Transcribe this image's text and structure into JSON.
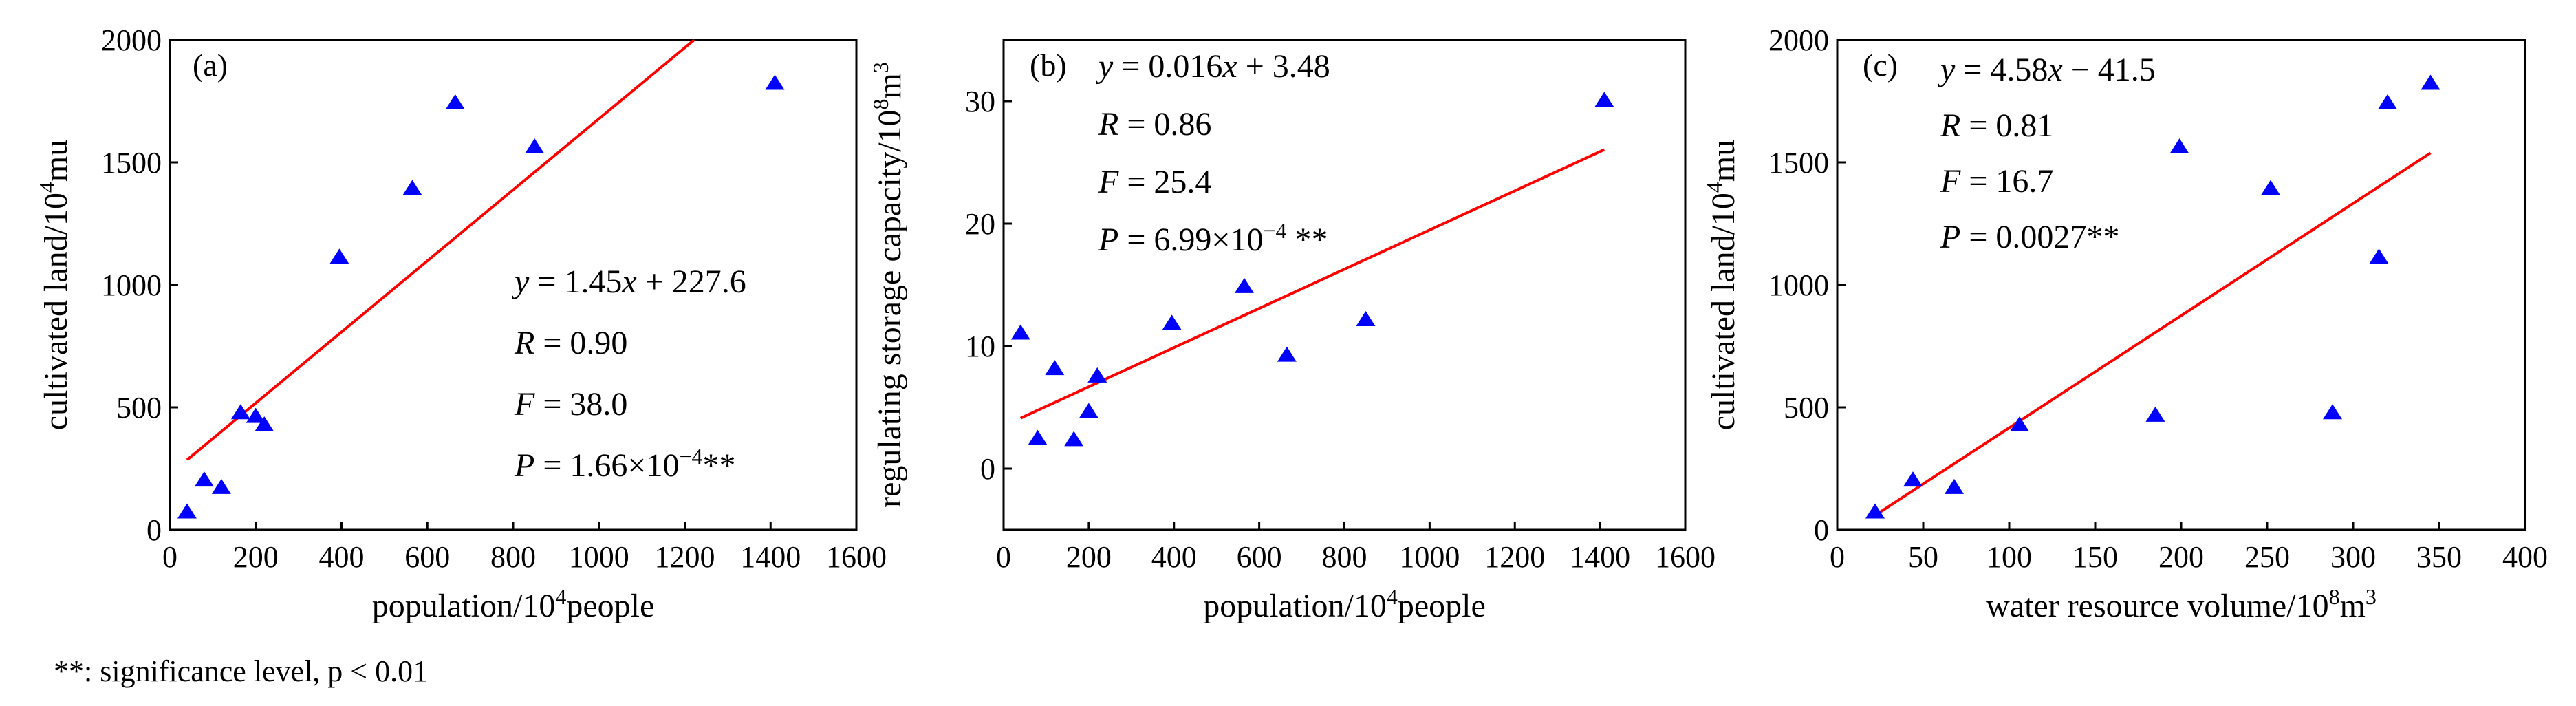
{
  "footnote": "**: significance level, p < 0.01",
  "chart_data": [
    {
      "type": "scatter",
      "panel": "(a)",
      "xlabel": {
        "pre": "population/10",
        "sup": "4",
        "post": "people"
      },
      "ylabel": {
        "pre": "cultivated land/10",
        "sup": "4",
        "post": "mu"
      },
      "xlim": [
        0,
        1600
      ],
      "ylim": [
        0,
        2000
      ],
      "xticks": [
        0,
        200,
        400,
        600,
        800,
        1000,
        1200,
        1400,
        1600
      ],
      "yticks": [
        0,
        500,
        1000,
        1500,
        2000
      ],
      "xtick_labels": [
        "0",
        "200",
        "400",
        "600",
        "800",
        "1000",
        "1200",
        "1400",
        "1600"
      ],
      "ytick_labels": [
        "0",
        "500",
        "1000",
        "1500",
        "2000"
      ],
      "points": [
        [
          40,
          70
        ],
        [
          80,
          200
        ],
        [
          120,
          170
        ],
        [
          165,
          475
        ],
        [
          200,
          460
        ],
        [
          220,
          425
        ],
        [
          395,
          1110
        ],
        [
          565,
          1390
        ],
        [
          665,
          1740
        ],
        [
          850,
          1560
        ],
        [
          1410,
          1820
        ]
      ],
      "fit": {
        "x": [
          40,
          1222
        ],
        "y": [
          285.6,
          2000
        ]
      },
      "marker_color": "#0000ff",
      "line_color": "#ff0000",
      "annotation": {
        "eq": "y = 1.45x + 227.6",
        "r": "R = 0.90",
        "f": "F = 38.0",
        "p_pre": "P = 1.66×10",
        "p_sup": "−4",
        "p_post": "**"
      }
    },
    {
      "type": "scatter",
      "panel": "(b)",
      "xlabel": {
        "pre": "population/10",
        "sup": "4",
        "post": "people"
      },
      "ylabel": {
        "pre": "regulating storage capacity/10",
        "sup": "8",
        "post": "m",
        "sup2": "3"
      },
      "xlim": [
        0,
        1600
      ],
      "ylim": [
        -5,
        35
      ],
      "xticks": [
        0,
        200,
        400,
        600,
        800,
        1000,
        1200,
        1400,
        1600
      ],
      "yticks": [
        0,
        10,
        20,
        30
      ],
      "xtick_labels": [
        "0",
        "200",
        "400",
        "600",
        "800",
        "1000",
        "1200",
        "1400",
        "1600"
      ],
      "ytick_labels": [
        "0",
        "10",
        "20",
        "30"
      ],
      "points": [
        [
          40,
          11
        ],
        [
          80,
          2.4
        ],
        [
          120,
          8.1
        ],
        [
          165,
          2.3
        ],
        [
          200,
          4.6
        ],
        [
          220,
          7.5
        ],
        [
          395,
          11.8
        ],
        [
          565,
          14.8
        ],
        [
          665,
          9.2
        ],
        [
          850,
          12.1
        ],
        [
          1410,
          30
        ]
      ],
      "fit": {
        "x": [
          40,
          1410
        ],
        "y": [
          4.12,
          26.04
        ]
      },
      "marker_color": "#0000ff",
      "line_color": "#ff0000",
      "annotation": {
        "eq": "y = 0.016x + 3.48",
        "r": "R = 0.86",
        "f": "F = 25.4",
        "p_pre": "P = 6.99×10",
        "p_sup": "−4",
        "p_post": " **"
      }
    },
    {
      "type": "scatter",
      "panel": "(c)",
      "xlabel": {
        "pre": "water resource volume/10",
        "sup": "8",
        "post": "m",
        "sup2": "3"
      },
      "ylabel": {
        "pre": "cultivated land/10",
        "sup": "4",
        "post": "mu"
      },
      "xlim": [
        0,
        400
      ],
      "ylim": [
        0,
        2000
      ],
      "xticks": [
        0,
        50,
        100,
        150,
        200,
        250,
        300,
        350,
        400
      ],
      "yticks": [
        0,
        500,
        1000,
        1500,
        2000
      ],
      "xtick_labels": [
        "0",
        "50",
        "100",
        "150",
        "200",
        "250",
        "300",
        "350",
        "400"
      ],
      "ytick_labels": [
        "0",
        "500",
        "1000",
        "1500",
        "2000"
      ],
      "points": [
        [
          22,
          70
        ],
        [
          44,
          200
        ],
        [
          68,
          170
        ],
        [
          106,
          425
        ],
        [
          185,
          465
        ],
        [
          199,
          1560
        ],
        [
          252,
          1390
        ],
        [
          288,
          475
        ],
        [
          315,
          1110
        ],
        [
          320,
          1740
        ],
        [
          345,
          1820
        ]
      ],
      "fit": {
        "x": [
          22,
          345
        ],
        "y": [
          59.3,
          1538.6
        ]
      },
      "marker_color": "#0000ff",
      "line_color": "#ff0000",
      "annotation": {
        "eq": "y = 4.58x − 41.5",
        "r": "R = 0.81",
        "f": "F = 16.7",
        "p_pre": "P = 0.0027",
        "p_sup": "",
        "p_post": "**"
      }
    }
  ]
}
